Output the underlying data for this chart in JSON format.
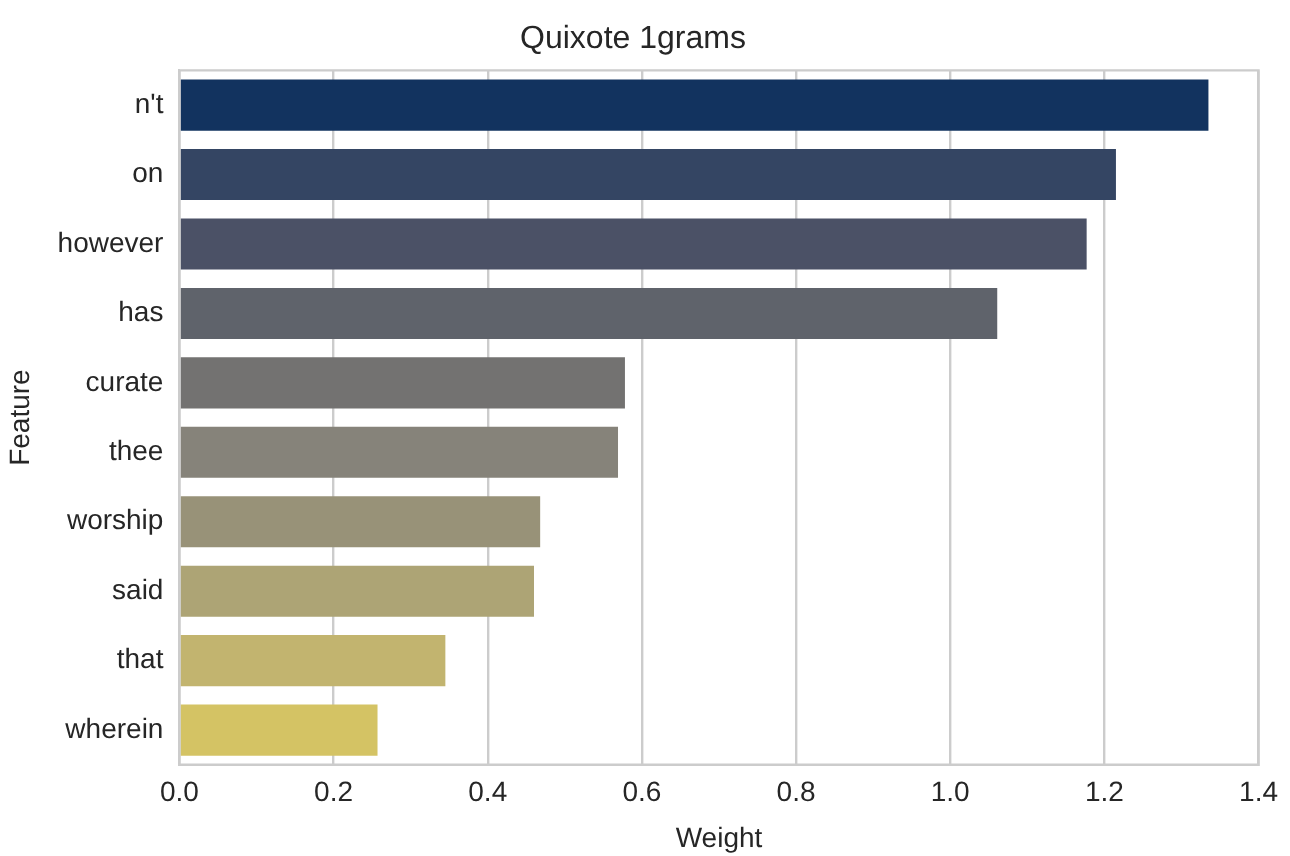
{
  "chart_data": {
    "type": "bar",
    "orientation": "horizontal",
    "title": "Quixote 1grams",
    "xlabel": "Weight",
    "ylabel": "Feature",
    "categories": [
      "n't",
      "on",
      "however",
      "has",
      "curate",
      "thee",
      "worship",
      "said",
      "that",
      "wherein"
    ],
    "values": [
      1.335,
      1.215,
      1.177,
      1.061,
      0.578,
      0.569,
      0.468,
      0.46,
      0.345,
      0.257
    ],
    "colors": [
      "#12335f",
      "#344563",
      "#4b5166",
      "#5f636b",
      "#737271",
      "#86837a",
      "#989278",
      "#ada475",
      "#c2b46f",
      "#d4c364"
    ],
    "xlim": [
      0,
      1.4
    ],
    "xticks": [
      {
        "value": 0,
        "label": "0.0"
      },
      0.2,
      0.4,
      0.6,
      0.8,
      {
        "value": 1,
        "label": "1.0"
      },
      1.2,
      1.4
    ],
    "grid": "x",
    "legend": false
  }
}
